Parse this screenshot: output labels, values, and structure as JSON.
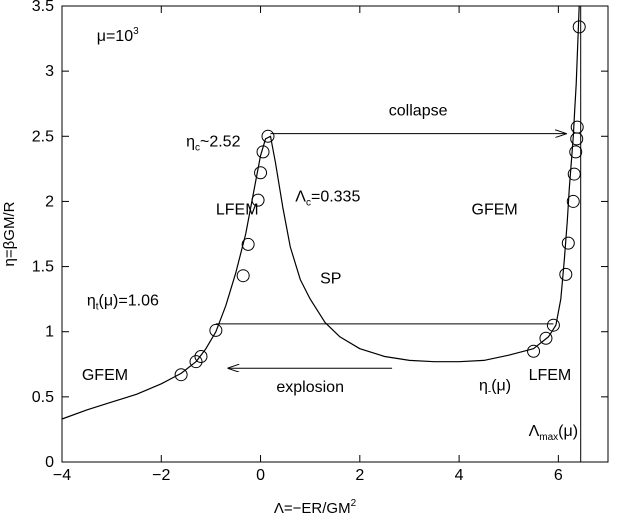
{
  "chart_data": {
    "type": "line",
    "title": "",
    "xlabel": {
      "text": "Λ=−ER/GM",
      "sup": "2"
    },
    "ylabel": "η=βGM/R",
    "xlim": [
      -4,
      7
    ],
    "ylim": [
      0,
      3.5
    ],
    "x_ticks": [
      {
        "value": -4,
        "label": "−4"
      },
      {
        "value": -2,
        "label": "−2"
      },
      {
        "value": 0,
        "label": "0"
      },
      {
        "value": 2,
        "label": "2"
      },
      {
        "value": 4,
        "label": "4"
      },
      {
        "value": 6,
        "label": "6"
      }
    ],
    "y_ticks": [
      {
        "value": 0,
        "label": "0"
      },
      {
        "value": 0.5,
        "label": "0.5"
      },
      {
        "value": 1,
        "label": "1"
      },
      {
        "value": 1.5,
        "label": "1.5"
      },
      {
        "value": 2,
        "label": "2"
      },
      {
        "value": 2.5,
        "label": "2.5"
      },
      {
        "value": 3,
        "label": "3"
      },
      {
        "value": 3.5,
        "label": "3.5"
      }
    ],
    "grid": false,
    "series": [
      {
        "type": "line",
        "color": "#000000",
        "x": [
          -4,
          -3.5,
          -3,
          -2.5,
          -2,
          -1.6,
          -1.3,
          -1.1,
          -0.9,
          -0.7,
          -0.5,
          -0.3,
          -0.15,
          0,
          0.1,
          0.2,
          0.3,
          0.45,
          0.6,
          0.8,
          1.0,
          1.3,
          1.6,
          2.0,
          2.5,
          3.0,
          3.5,
          4.0,
          4.5,
          5.0,
          5.5,
          5.8,
          5.95,
          6.05,
          6.12,
          6.18,
          6.22,
          6.26,
          6.3,
          6.33,
          6.36,
          6.38,
          6.4,
          6.42
        ],
        "y": [
          0.33,
          0.4,
          0.46,
          0.52,
          0.6,
          0.68,
          0.77,
          0.87,
          1.0,
          1.2,
          1.45,
          1.75,
          2.05,
          2.35,
          2.48,
          2.5,
          2.3,
          1.95,
          1.65,
          1.4,
          1.25,
          1.07,
          0.96,
          0.87,
          0.81,
          0.78,
          0.77,
          0.77,
          0.78,
          0.82,
          0.87,
          0.96,
          1.05,
          1.25,
          1.55,
          1.85,
          2.1,
          2.3,
          2.5,
          2.7,
          2.9,
          3.1,
          3.3,
          3.5
        ]
      },
      {
        "type": "scatter",
        "marker": "open-circle",
        "x": [
          -1.6,
          -1.3,
          -1.2,
          -0.9,
          -0.35,
          -0.25,
          -0.05,
          0.0,
          0.05,
          0.15,
          5.5,
          5.75,
          5.9,
          6.15,
          6.2,
          6.3,
          6.32,
          6.35,
          6.37,
          6.38,
          6.42
        ],
        "y": [
          0.67,
          0.77,
          0.81,
          1.01,
          1.43,
          1.67,
          2.01,
          2.22,
          2.38,
          2.5,
          0.85,
          0.95,
          1.05,
          1.44,
          1.68,
          2.0,
          2.21,
          2.38,
          2.48,
          2.57,
          3.34
        ]
      },
      {
        "type": "hline",
        "name": "η_t",
        "y": 1.06,
        "x_from": -0.9,
        "x_to": 5.9
      },
      {
        "type": "vline",
        "name": "Λ_max",
        "x": 6.45,
        "y_from": 0,
        "y_to": 3.5
      }
    ],
    "arrows": [
      {
        "label": "collapse",
        "from": [
          0.2,
          2.52
        ],
        "to": [
          6.15,
          2.52
        ]
      },
      {
        "label": "explosion",
        "from": [
          2.65,
          0.72
        ],
        "to": [
          -0.65,
          0.72
        ]
      }
    ],
    "annotations": [
      {
        "id": "mu",
        "x": -3.3,
        "y": 3.23,
        "parts": [
          "μ=10",
          "3",
          ""
        ],
        "style": [
          "n",
          "sup",
          "n"
        ]
      },
      {
        "id": "eta_c",
        "x": -1.5,
        "y": 2.42,
        "parts": [
          "η",
          "c",
          "~2.52"
        ],
        "style": [
          "n",
          "sub",
          "n"
        ]
      },
      {
        "id": "lambda_c",
        "x": 0.7,
        "y": 2.0,
        "parts": [
          "Λ",
          "c",
          "=0.335"
        ],
        "style": [
          "n",
          "sub",
          "n"
        ]
      },
      {
        "id": "lfem_left",
        "x": -0.9,
        "y": 1.9,
        "parts": [
          "LFEM"
        ],
        "style": [
          "n"
        ]
      },
      {
        "id": "sp",
        "x": 1.2,
        "y": 1.37,
        "parts": [
          "SP"
        ],
        "style": [
          "n"
        ]
      },
      {
        "id": "gfem_right",
        "x": 4.25,
        "y": 1.9,
        "parts": [
          "GFEM"
        ],
        "style": [
          "n"
        ]
      },
      {
        "id": "eta_t",
        "x": -3.5,
        "y": 1.2,
        "parts": [
          "η",
          "t",
          "(μ)=1.06"
        ],
        "style": [
          "n",
          "sub",
          "n"
        ]
      },
      {
        "id": "gfem_left",
        "x": -3.6,
        "y": 0.63,
        "parts": [
          "GFEM"
        ],
        "style": [
          "n"
        ]
      },
      {
        "id": "eta_minus",
        "x": 4.4,
        "y": 0.55,
        "parts": [
          "η",
          "-",
          "(μ)"
        ],
        "style": [
          "n",
          "sub",
          "n"
        ]
      },
      {
        "id": "lfem_right",
        "x": 5.4,
        "y": 0.63,
        "parts": [
          "LFEM"
        ],
        "style": [
          "n"
        ]
      },
      {
        "id": "lambda_max",
        "x": 5.4,
        "y": 0.2,
        "parts": [
          "Λ",
          "max",
          "(μ)"
        ],
        "style": [
          "n",
          "sub",
          "n"
        ]
      }
    ]
  }
}
